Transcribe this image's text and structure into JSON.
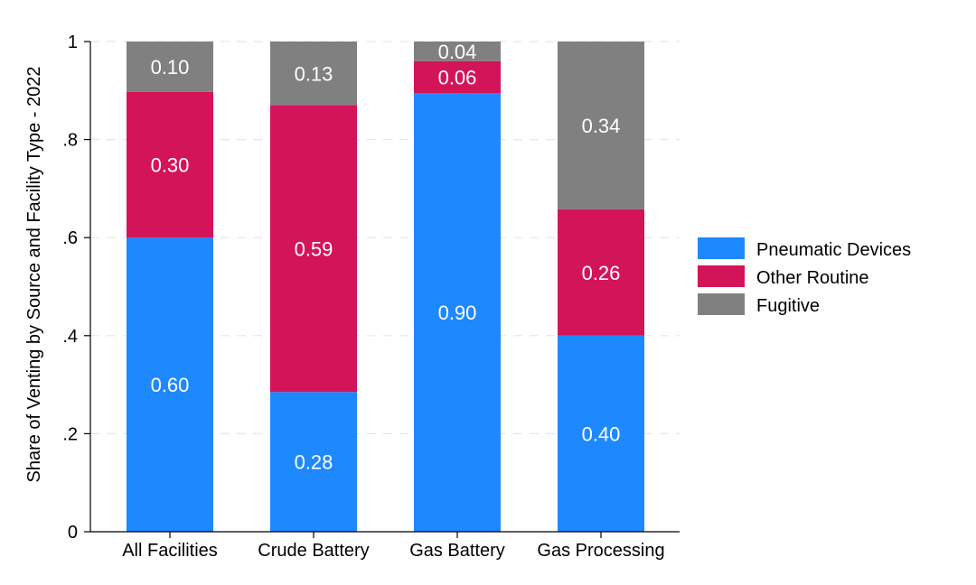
{
  "chart_data": {
    "type": "bar",
    "stacked": true,
    "categories": [
      "All Facilities",
      "Crude Battery",
      "Gas Battery",
      "Gas Processing"
    ],
    "series": [
      {
        "name": "Pneumatic Devices",
        "color": "#1e88ff",
        "values": [
          0.6,
          0.285,
          0.895,
          0.4
        ],
        "labels": [
          "0.60",
          "0.28",
          "0.90",
          "0.40"
        ]
      },
      {
        "name": "Other Routine",
        "color": "#d31459",
        "values": [
          0.297,
          0.585,
          0.065,
          0.258
        ],
        "labels": [
          "0.30",
          "0.59",
          "0.06",
          "0.26"
        ]
      },
      {
        "name": "Fugitive",
        "color": "#808080",
        "values": [
          0.103,
          0.13,
          0.04,
          0.342
        ],
        "labels": [
          "0.10",
          "0.13",
          "0.04",
          "0.34"
        ]
      }
    ],
    "title": "",
    "xlabel": "",
    "ylabel": "Share of Venting by Source and Facility Type - 2022",
    "ylim": [
      0,
      1
    ],
    "yticks": [
      0,
      0.2,
      0.4,
      0.6,
      0.8,
      1
    ],
    "ytick_labels": [
      "0",
      ".2",
      ".4",
      ".6",
      ".8",
      "1"
    ],
    "grid": true,
    "legend_position": "right"
  }
}
